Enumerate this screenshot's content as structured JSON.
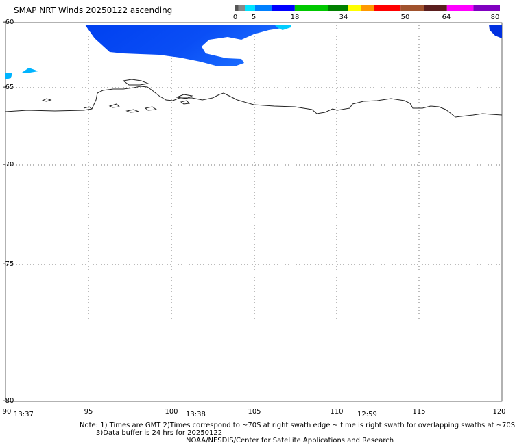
{
  "title": "SMAP NRT Winds 20250122 ascending",
  "colorbar": {
    "tick_labels": [
      "0",
      "5",
      "18",
      "34",
      "50",
      "64",
      "80"
    ],
    "segments": [
      {
        "color": "#555555",
        "from": 0,
        "to": 1
      },
      {
        "color": "#888888",
        "from": 1,
        "to": 3
      },
      {
        "color": "#00e5ff",
        "from": 3,
        "to": 6
      },
      {
        "color": "#0080ff",
        "from": 6,
        "to": 11
      },
      {
        "color": "#0000ff",
        "from": 11,
        "to": 18
      },
      {
        "color": "#00c800",
        "from": 18,
        "to": 28
      },
      {
        "color": "#008000",
        "from": 28,
        "to": 34
      },
      {
        "color": "#ffff00",
        "from": 34,
        "to": 38
      },
      {
        "color": "#ff9900",
        "from": 38,
        "to": 42
      },
      {
        "color": "#ff0000",
        "from": 42,
        "to": 50
      },
      {
        "color": "#a0522d",
        "from": 50,
        "to": 57
      },
      {
        "color": "#5a1e1e",
        "from": 57,
        "to": 64
      },
      {
        "color": "#ff00ff",
        "from": 64,
        "to": 72
      },
      {
        "color": "#8000c0",
        "from": 72,
        "to": 80
      }
    ]
  },
  "map": {
    "lat_labels": [
      "-60",
      "-65",
      "-70",
      "-75",
      "-80"
    ],
    "lon_labels": [
      "90",
      "95",
      "100",
      "105",
      "110",
      "115",
      "120"
    ],
    "time_labels": [
      "13:37",
      "13:38",
      "12:59"
    ],
    "grid": "dotted",
    "coast_color": "#000000",
    "wind_colors": {
      "strong": "#0044ee",
      "medium": "#0a62ff",
      "light": "#00ccff"
    }
  },
  "notes": {
    "line1": "Note: 1) Times are GMT 2)Times correspond to ~70S at right swath edge ~ time is right swath for overlapping swaths at ~70S",
    "line2": "3)Data buffer is 24 hrs for 20250122",
    "line3": "NOAA/NESDIS/Center for Satellite Applications and Research"
  }
}
